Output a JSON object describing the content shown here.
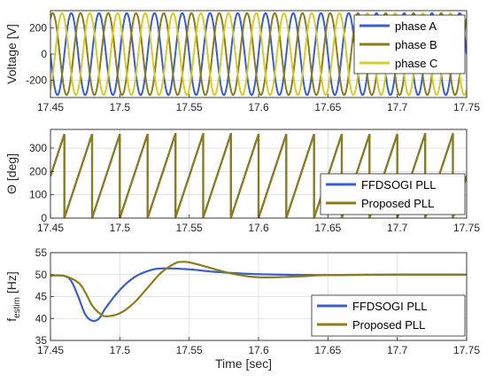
{
  "figure": {
    "xlabel": "Time [sec]"
  },
  "chart_data": [
    {
      "type": "line",
      "ylabel": "Voltage [V]",
      "xlim": [
        17.45,
        17.75
      ],
      "ylim": [
        -330,
        330
      ],
      "xticks": [
        "17.45",
        "17.5",
        "17.55",
        "17.6",
        "17.65",
        "17.7",
        "17.75"
      ],
      "xtick_values": [
        17.45,
        17.5,
        17.55,
        17.6,
        17.65,
        17.7,
        17.75
      ],
      "yticks": [
        "200",
        "0",
        "-200"
      ],
      "ytick_values": [
        200,
        0,
        -200
      ],
      "grid": true,
      "legend_position": "top-right",
      "series": [
        {
          "name": "phase A",
          "color": "#3a5fcd",
          "amplitude": 311,
          "frequency_hz": 50,
          "phase_deg": 0
        },
        {
          "name": "phase B",
          "color": "#8b7d1a",
          "amplitude": 311,
          "frequency_hz": 50,
          "phase_deg": -120
        },
        {
          "name": "phase C",
          "color": "#d4cc2a",
          "amplitude": 311,
          "frequency_hz": 50,
          "phase_deg": 120
        }
      ]
    },
    {
      "type": "line",
      "ylabel": "Θ [deg]",
      "xlim": [
        17.45,
        17.75
      ],
      "ylim": [
        0,
        380
      ],
      "xticks": [
        "17.45",
        "17.5",
        "17.55",
        "17.6",
        "17.65",
        "17.7",
        "17.75"
      ],
      "xtick_values": [
        17.45,
        17.5,
        17.55,
        17.6,
        17.65,
        17.7,
        17.75
      ],
      "yticks": [
        "0",
        "100",
        "200",
        "300"
      ],
      "ytick_values": [
        0,
        100,
        200,
        300
      ],
      "grid": true,
      "legend_position": "bottom-right",
      "series": [
        {
          "name": "FFDSOGI PLL",
          "color": "#3a5fcd",
          "frequency_hz": 50,
          "phase_deg": 0
        },
        {
          "name": "Proposed PLL",
          "color": "#8b7d1a",
          "frequency_hz": 50,
          "phase_deg": 0
        }
      ]
    },
    {
      "type": "line",
      "ylabel": "f_estim [Hz]",
      "ylabel_main": "f",
      "ylabel_sub": "estim",
      "ylabel_unit": "[Hz]",
      "xlim": [
        17.45,
        17.75
      ],
      "ylim": [
        35,
        55
      ],
      "xticks": [
        "17.45",
        "17.5",
        "17.55",
        "17.6",
        "17.65",
        "17.7",
        "17.75"
      ],
      "xtick_values": [
        17.45,
        17.5,
        17.55,
        17.6,
        17.65,
        17.7,
        17.75
      ],
      "yticks": [
        "55",
        "50",
        "45",
        "40",
        "35"
      ],
      "ytick_values": [
        55,
        50,
        45,
        40,
        35
      ],
      "grid": true,
      "legend_position": "bottom-right",
      "series": [
        {
          "name": "FFDSOGI PLL",
          "color": "#3a5fcd",
          "x": [
            17.45,
            17.46,
            17.465,
            17.47,
            17.475,
            17.48,
            17.485,
            17.49,
            17.5,
            17.51,
            17.52,
            17.53,
            17.55,
            17.57,
            17.6,
            17.65,
            17.7,
            17.75
          ],
          "y": [
            49.8,
            49.7,
            48.5,
            45.0,
            41.0,
            39.5,
            40.0,
            42.5,
            46.5,
            49.3,
            50.8,
            51.4,
            51.2,
            50.6,
            50.1,
            49.9,
            50.0,
            50.0
          ]
        },
        {
          "name": "Proposed PLL",
          "color": "#8b7d1a",
          "x": [
            17.45,
            17.46,
            17.47,
            17.475,
            17.48,
            17.485,
            17.49,
            17.5,
            17.51,
            17.52,
            17.53,
            17.54,
            17.545,
            17.55,
            17.56,
            17.58,
            17.6,
            17.63,
            17.65,
            17.7,
            17.75
          ],
          "y": [
            49.8,
            49.7,
            48.2,
            46.0,
            43.0,
            41.3,
            40.5,
            41.2,
            43.5,
            47.0,
            50.5,
            52.6,
            52.9,
            52.8,
            52.0,
            50.3,
            49.4,
            49.6,
            49.9,
            50.0,
            50.0
          ]
        }
      ]
    }
  ]
}
